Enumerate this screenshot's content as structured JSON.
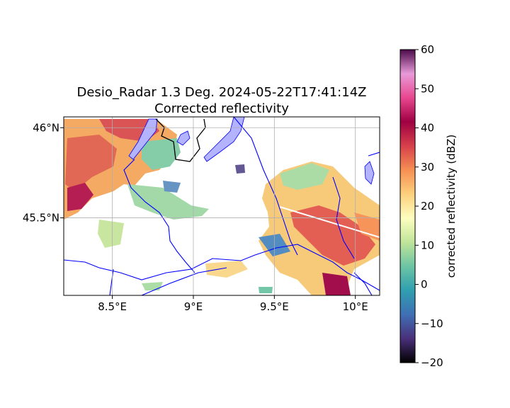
{
  "figure": {
    "title_line1": "Desio_Radar 1.3 Deg. 2024-05-22T17:41:14Z",
    "title_line2": "Corrected reflectivity"
  },
  "map": {
    "lon_range": [
      8.2,
      10.15
    ],
    "lat_range": [
      45.07,
      46.06
    ],
    "lon_ticks": [
      {
        "value": 8.5,
        "label": "8.5°E"
      },
      {
        "value": 9.0,
        "label": "9°E"
      },
      {
        "value": 9.5,
        "label": "9.5°E"
      },
      {
        "value": 10.0,
        "label": "10°E"
      }
    ],
    "lat_ticks": [
      {
        "value": 46.0,
        "label": "46°N"
      },
      {
        "value": 45.5,
        "label": "45.5°N"
      }
    ],
    "grid": true,
    "colors": {
      "rivers": "#0000ff",
      "lakes": "#b3b3ff",
      "border": "#000000",
      "grid": "#b0b0b0"
    }
  },
  "colorbar": {
    "label": "corrected reflectivity (dBZ)",
    "vmin": -20,
    "vmax": 60,
    "ticks": [
      {
        "value": 60,
        "label": "60"
      },
      {
        "value": 50,
        "label": "50"
      },
      {
        "value": 40,
        "label": "40"
      },
      {
        "value": 30,
        "label": "30"
      },
      {
        "value": 20,
        "label": "20"
      },
      {
        "value": 10,
        "label": "10"
      },
      {
        "value": 0,
        "label": "0"
      },
      {
        "value": -10,
        "label": "−10"
      },
      {
        "value": -20,
        "label": "−20"
      }
    ],
    "colormap": [
      "#000000",
      "#4a2f7a",
      "#3f6fb5",
      "#2f9fb0",
      "#6cc4a4",
      "#c0e49a",
      "#fdfebf",
      "#fdd07d",
      "#f68f52",
      "#d7404b",
      "#9e0142",
      "#e8478f",
      "#e89ad8",
      "#4a0a4a"
    ]
  }
}
